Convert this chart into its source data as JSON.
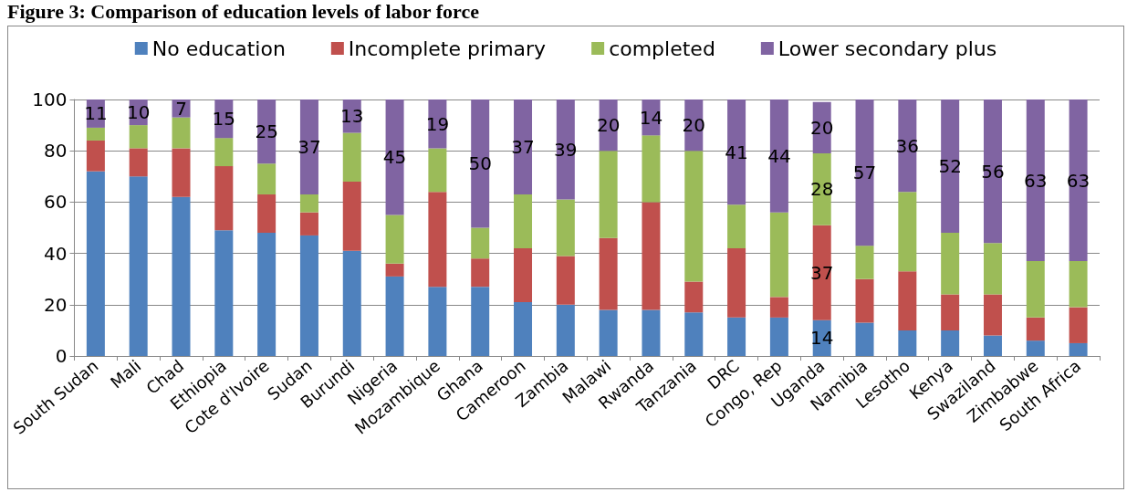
{
  "chart_data": {
    "type": "bar",
    "title": "Figure 3:  Comparison of education levels of labor force",
    "categories": [
      "South Sudan",
      "Mali",
      "Chad",
      "Ethiopia",
      "Cote d'Ivoire",
      "Sudan",
      "Burundi",
      "Nigeria",
      "Mozambique",
      "Ghana",
      "Cameroon",
      "Zambia",
      "Malawi",
      "Rwanda",
      "Tanzania",
      "DRC",
      "Congo, Rep",
      "Uganda",
      "Namibia",
      "Lesotho",
      "Kenya",
      "Swaziland",
      "Zimbabwe",
      "South Africa"
    ],
    "stacked": true,
    "ylim": [
      0,
      100
    ],
    "yticks": [
      0,
      20,
      40,
      60,
      80,
      100
    ],
    "grid": "y",
    "legend": "top",
    "series": [
      {
        "name": "No education",
        "color": "#4f81bd",
        "values": [
          72,
          70,
          62,
          49,
          48,
          47,
          41,
          31,
          27,
          27,
          21,
          20,
          18,
          18,
          17,
          15,
          15,
          14,
          13,
          10,
          10,
          8,
          6,
          5
        ],
        "value_labels": [
          null,
          null,
          null,
          null,
          null,
          null,
          null,
          null,
          null,
          null,
          null,
          null,
          null,
          null,
          null,
          null,
          null,
          "14",
          null,
          null,
          null,
          null,
          null,
          null
        ]
      },
      {
        "name": "Incomplete primary",
        "color": "#c0504d",
        "values": [
          12,
          11,
          19,
          25,
          15,
          9,
          27,
          5,
          37,
          11,
          21,
          19,
          28,
          42,
          12,
          27,
          8,
          37,
          17,
          23,
          14,
          16,
          9,
          14
        ],
        "value_labels": [
          null,
          null,
          null,
          null,
          null,
          null,
          null,
          null,
          null,
          null,
          null,
          null,
          null,
          null,
          null,
          null,
          null,
          "37",
          null,
          null,
          null,
          null,
          null,
          null
        ]
      },
      {
        "name": "completed",
        "color": "#9bbb59",
        "values": [
          5,
          9,
          12,
          11,
          12,
          7,
          19,
          19,
          17,
          12,
          21,
          22,
          34,
          26,
          51,
          17,
          33,
          28,
          13,
          31,
          24,
          20,
          22,
          18
        ],
        "value_labels": [
          null,
          null,
          null,
          null,
          null,
          null,
          null,
          null,
          null,
          null,
          null,
          null,
          null,
          null,
          null,
          null,
          null,
          "28",
          null,
          null,
          null,
          null,
          null,
          null
        ]
      },
      {
        "name": "Lower secondary plus",
        "color": "#8064a2",
        "values": [
          11,
          10,
          7,
          15,
          25,
          37,
          13,
          45,
          19,
          50,
          37,
          39,
          20,
          14,
          20,
          41,
          44,
          20,
          57,
          36,
          52,
          56,
          63,
          63
        ],
        "value_labels": [
          "11",
          "10",
          "7",
          "15",
          "25",
          "37",
          "13",
          "45",
          "19",
          "50",
          "37",
          "39",
          "20",
          "14",
          "20",
          "41",
          "44",
          "20",
          "57",
          "36",
          "52",
          "56",
          "63",
          "63"
        ]
      }
    ]
  }
}
